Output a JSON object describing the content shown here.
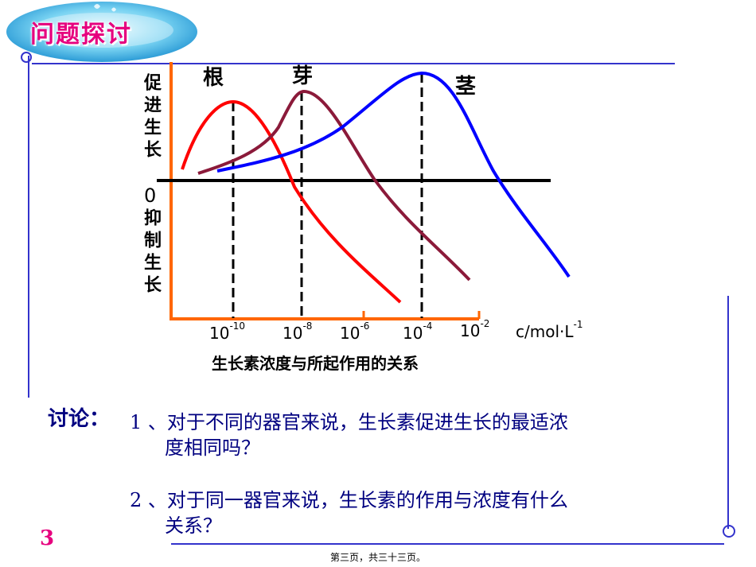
{
  "header": {
    "title": "问题探讨"
  },
  "chart": {
    "y_label_top": "促进生长",
    "y_label_bottom": "抑制生长",
    "zero_label": "0",
    "curve_labels": {
      "root": "根",
      "bud": "芽",
      "stem": "茎"
    },
    "tick_labels": [
      {
        "base": "10",
        "exp": "-10"
      },
      {
        "base": "10",
        "exp": "-8"
      },
      {
        "base": "10",
        "exp": "-6"
      },
      {
        "base": "10",
        "exp": "-4"
      },
      {
        "base": "10",
        "exp": "-2"
      }
    ],
    "unit": {
      "text": "c/mol·L",
      "exp": "-1"
    },
    "caption": "生长素浓度与所起作用的关系"
  },
  "chart_data": {
    "type": "line",
    "title": "生长素浓度与所起作用的关系",
    "xlabel": "c/mol·L-1",
    "ylabel": "促进生长 / 抑制生长",
    "x_ticks": [
      "10-10",
      "10-8",
      "10-6",
      "10-4",
      "10-2"
    ],
    "series": [
      {
        "name": "根",
        "color": "#ff0000",
        "optimum": "10-10"
      },
      {
        "name": "芽",
        "color": "#8b1a3a",
        "optimum": "10-8"
      },
      {
        "name": "茎",
        "color": "#0000ff",
        "optimum": "10-4"
      }
    ]
  },
  "discussion": {
    "label": "讨论：",
    "q1_line1": "1 、对于不同的器官来说，生长素促进生长的最适浓",
    "q1_line2": "度相同吗？",
    "q2_line1": "2 、对于同一器官来说，生长素的作用与浓度有什么",
    "q2_line2": "关系？"
  },
  "page_number": "3",
  "footer": "第三页，共三十三页。",
  "colors": {
    "accent": "#e6007e",
    "frame": "#3333cc",
    "axis": "#ff6600",
    "text_blue": "#000080"
  }
}
